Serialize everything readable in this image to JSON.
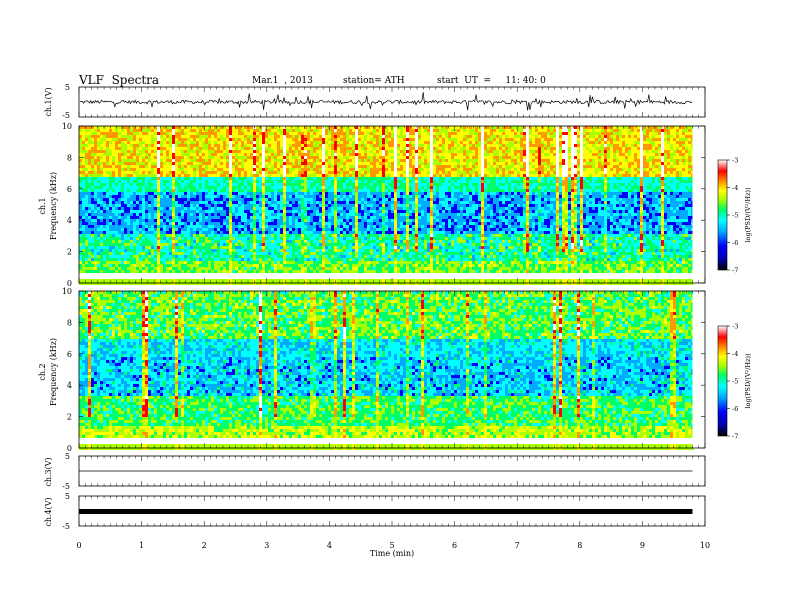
{
  "header": {
    "title": "VLF  Spectra",
    "date": "Mar.1  , 2013",
    "station": "station= ATH",
    "start": "start  UT  =     11: 40: 0"
  },
  "chart_data": [
    {
      "type": "line",
      "ylabel": "ch.1(V)",
      "ylim": [
        -5,
        5
      ],
      "yticks": [
        "5",
        "-5"
      ],
      "description_values": {
        "baseline": 0,
        "typical_amplitude": 1
      }
    },
    {
      "type": "heatmap",
      "ylabel_top": "ch.1",
      "ylabel": "Frequency  (kHz)",
      "ylim": [
        0,
        10
      ],
      "yticks": [
        "0",
        "2",
        "4",
        "6",
        "8",
        "10"
      ],
      "xlim": [
        0,
        10
      ],
      "colorbar": {
        "label": "log(PSD/(V²/Hz))",
        "range": [
          -7,
          -3
        ],
        "ticks": [
          "-3",
          "-4",
          "-5",
          "-6",
          "-7"
        ]
      }
    },
    {
      "type": "heatmap",
      "ylabel_top": "ch.2",
      "ylabel": "Frequency  (kHz)",
      "ylim": [
        0,
        10
      ],
      "yticks": [
        "0",
        "2",
        "4",
        "6",
        "8",
        "10"
      ],
      "xlim": [
        0,
        10
      ],
      "colorbar": {
        "label": "log(PSD/(V²/Hz))",
        "range": [
          -7,
          -3
        ],
        "ticks": [
          "-3",
          "-4",
          "-5",
          "-6",
          "-7"
        ]
      }
    },
    {
      "type": "line",
      "ylabel": "ch.3(V)",
      "ylim": [
        -5,
        5
      ],
      "yticks": [
        "5",
        "-5"
      ]
    },
    {
      "type": "line",
      "ylabel": "ch.4(V)",
      "ylim": [
        -5,
        5
      ],
      "yticks": [
        "5",
        "-5"
      ]
    }
  ],
  "xaxis": {
    "label": "Time  (min)",
    "range": [
      0,
      10
    ],
    "ticks": [
      "0",
      "1",
      "2",
      "3",
      "4",
      "5",
      "6",
      "7",
      "8",
      "9",
      "10"
    ],
    "data_end": 9.8
  },
  "colors": {
    "frame": "#000000",
    "colormap": [
      "#000000",
      "#0000aa",
      "#0000ff",
      "#00aaff",
      "#00ffff",
      "#00ff66",
      "#aaff00",
      "#ffff00",
      "#ff9900",
      "#ff0000",
      "#ffffff"
    ]
  }
}
